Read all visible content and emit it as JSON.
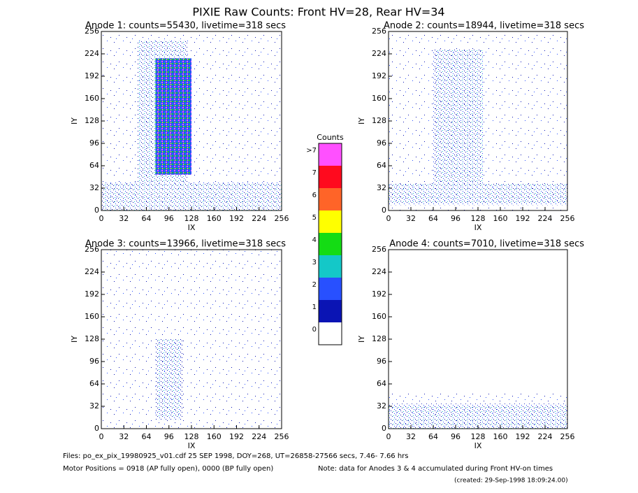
{
  "title": "PIXIE Raw Counts:  Front HV=28, Rear HV=34",
  "chart_data": [
    {
      "type": "heatmap",
      "title": "Anode 1: counts=55430, livetime=318 secs",
      "x_label": "IX",
      "y_label": "IY",
      "xlim": [
        0,
        256
      ],
      "ylim": [
        0,
        256
      ],
      "xticks": [
        0,
        32,
        64,
        96,
        128,
        160,
        192,
        224,
        256
      ],
      "yticks": [
        0,
        32,
        64,
        96,
        128,
        160,
        192,
        224,
        256
      ]
    },
    {
      "type": "heatmap",
      "title": "Anode 2: counts=18944, livetime=318 secs",
      "x_label": "IX",
      "y_label": "IY",
      "xlim": [
        0,
        256
      ],
      "ylim": [
        0,
        256
      ],
      "xticks": [
        0,
        32,
        64,
        96,
        128,
        160,
        192,
        224,
        256
      ],
      "yticks": [
        0,
        32,
        64,
        96,
        128,
        160,
        192,
        224,
        256
      ]
    },
    {
      "type": "heatmap",
      "title": "Anode 3: counts=13966, livetime=318 secs",
      "x_label": "IX",
      "y_label": "IY",
      "xlim": [
        0,
        256
      ],
      "ylim": [
        0,
        256
      ],
      "xticks": [
        0,
        32,
        64,
        96,
        128,
        160,
        192,
        224,
        256
      ],
      "yticks": [
        0,
        32,
        64,
        96,
        128,
        160,
        192,
        224,
        256
      ]
    },
    {
      "type": "heatmap",
      "title": "Anode 4: counts=7010, livetime=318 secs",
      "x_label": "IX",
      "y_label": "IY",
      "xlim": [
        0,
        256
      ],
      "ylim": [
        0,
        256
      ],
      "xticks": [
        0,
        32,
        64,
        96,
        128,
        160,
        192,
        224,
        256
      ],
      "yticks": [
        0,
        32,
        64,
        96,
        128,
        160,
        192,
        224,
        256
      ]
    }
  ],
  "colorbar": {
    "title": "Counts",
    "labels": [
      "0",
      "1",
      "2",
      "3",
      "4",
      "5",
      "6",
      "7",
      ">7"
    ],
    "colors": [
      "#ffffff",
      "#0a14b4",
      "#2850ff",
      "#14c8c8",
      "#14dc14",
      "#ffff00",
      "#ff6428",
      "#ff0a1e",
      "#ff50ff"
    ]
  },
  "footer": {
    "files": "Files: po_ex_pix_19980925_v01.cdf    25 SEP 1998, DOY=268, UT=26858-27566 secs,  7.46- 7.66 hrs",
    "motor": "Motor Positions = 0918 (AP fully open), 0000 (BP fully open)",
    "note": "Note: data for Anodes 3 & 4 accumulated during Front HV-on times",
    "created": "(created: 29-Sep-1998 18:09:24.00)"
  }
}
